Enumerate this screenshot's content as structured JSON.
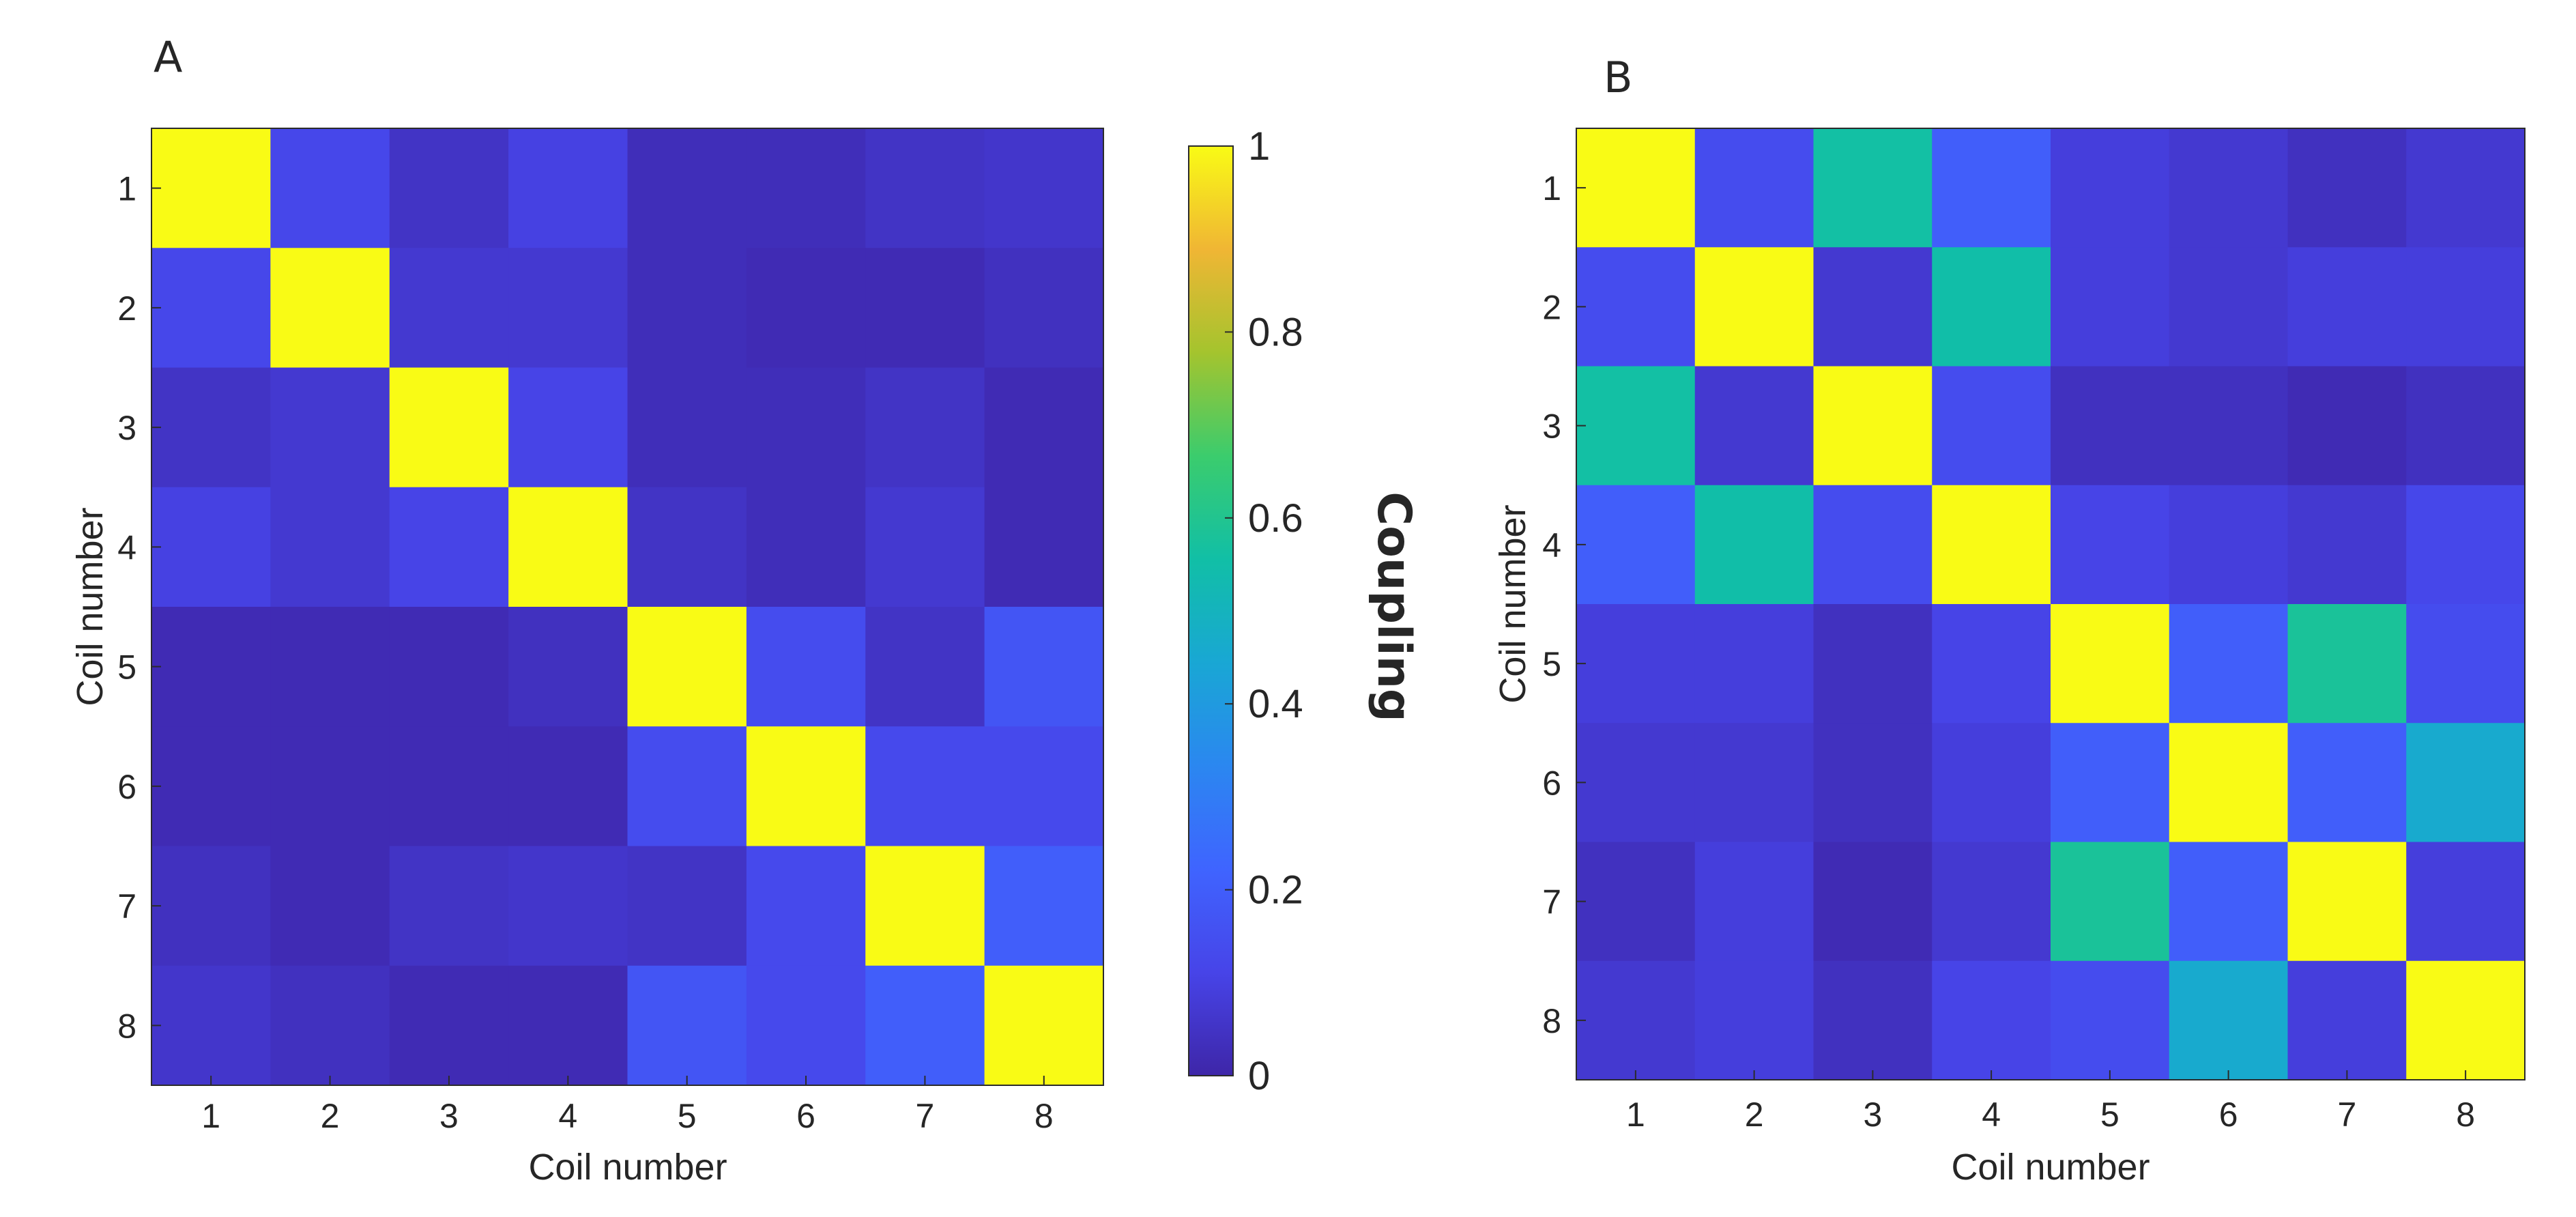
{
  "chart_data": [
    {
      "type": "heatmap",
      "panel_label": "A",
      "title": "",
      "xlabel": "Coil number",
      "ylabel": "Coil number",
      "x_ticks": [
        "1",
        "2",
        "3",
        "4",
        "5",
        "6",
        "7",
        "8"
      ],
      "y_ticks": [
        "1",
        "2",
        "3",
        "4",
        "5",
        "6",
        "7",
        "8"
      ],
      "clim": [
        0,
        1
      ],
      "values": [
        [
          1.0,
          0.12,
          0.05,
          0.1,
          0.03,
          0.03,
          0.05,
          0.06
        ],
        [
          0.12,
          1.0,
          0.07,
          0.07,
          0.03,
          0.02,
          0.02,
          0.04
        ],
        [
          0.05,
          0.07,
          1.0,
          0.11,
          0.03,
          0.03,
          0.05,
          0.02
        ],
        [
          0.1,
          0.07,
          0.11,
          1.0,
          0.05,
          0.03,
          0.07,
          0.02
        ],
        [
          0.02,
          0.02,
          0.02,
          0.04,
          1.0,
          0.14,
          0.05,
          0.17
        ],
        [
          0.02,
          0.02,
          0.02,
          0.02,
          0.14,
          1.0,
          0.13,
          0.13
        ],
        [
          0.04,
          0.02,
          0.05,
          0.06,
          0.05,
          0.13,
          1.0,
          0.2
        ],
        [
          0.06,
          0.04,
          0.02,
          0.02,
          0.17,
          0.13,
          0.2,
          1.0
        ]
      ]
    },
    {
      "type": "heatmap",
      "panel_label": "B",
      "title": "",
      "xlabel": "Coil number",
      "ylabel": "Coil number",
      "x_ticks": [
        "1",
        "2",
        "3",
        "4",
        "5",
        "6",
        "7",
        "8"
      ],
      "y_ticks": [
        "1",
        "2",
        "3",
        "4",
        "5",
        "6",
        "7",
        "8"
      ],
      "clim": [
        0,
        1
      ],
      "values": [
        [
          1.0,
          0.14,
          0.56,
          0.2,
          0.09,
          0.07,
          0.04,
          0.07
        ],
        [
          0.14,
          1.0,
          0.07,
          0.55,
          0.09,
          0.07,
          0.09,
          0.09
        ],
        [
          0.56,
          0.07,
          1.0,
          0.14,
          0.04,
          0.04,
          0.02,
          0.04
        ],
        [
          0.2,
          0.55,
          0.14,
          1.0,
          0.11,
          0.09,
          0.07,
          0.12
        ],
        [
          0.09,
          0.09,
          0.04,
          0.11,
          1.0,
          0.2,
          0.58,
          0.14
        ],
        [
          0.07,
          0.07,
          0.04,
          0.09,
          0.2,
          1.0,
          0.2,
          0.46
        ],
        [
          0.04,
          0.09,
          0.02,
          0.07,
          0.58,
          0.2,
          1.0,
          0.09
        ],
        [
          0.07,
          0.09,
          0.04,
          0.11,
          0.14,
          0.46,
          0.09,
          1.0
        ]
      ]
    }
  ],
  "colorbar": {
    "label": "Coupling",
    "range": [
      0,
      1
    ],
    "ticks": [
      "0",
      "0.2",
      "0.4",
      "0.6",
      "0.8",
      "1"
    ],
    "colormap": "parula",
    "colors": [
      "#3e26a8",
      "#4744e8",
      "#3f64ff",
      "#2b87f0",
      "#19a7d4",
      "#11bfa6",
      "#3bcc6d",
      "#a4c42e",
      "#f0b634",
      "#f9fb15"
    ]
  }
}
